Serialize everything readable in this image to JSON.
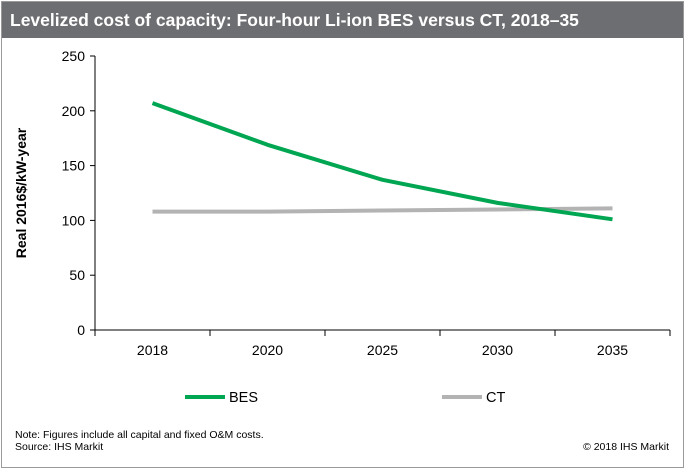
{
  "header": {
    "title": "Levelized cost of capacity: Four-hour Li-ion BES versus CT, 2018–35"
  },
  "chart_data": {
    "type": "line",
    "title": "Levelized cost of capacity: Four-hour Li-ion BES versus CT, 2018–35",
    "xlabel": "",
    "ylabel": "Real 2016$/kW-year",
    "categories": [
      "2018",
      "2020",
      "2025",
      "2030",
      "2035"
    ],
    "ylim": [
      0,
      250
    ],
    "yticks": [
      0,
      50,
      100,
      150,
      200,
      250
    ],
    "grid": false,
    "legend_position": "bottom",
    "series": [
      {
        "name": "BES",
        "color": "#00a651",
        "values": [
          207,
          169,
          137,
          116,
          101
        ]
      },
      {
        "name": "CT",
        "color": "#b3b3b3",
        "values": [
          108,
          108,
          109,
          110,
          111
        ]
      }
    ]
  },
  "footer": {
    "note": "Note: Figures include all capital and fixed O&M costs.",
    "source": "Source: IHS Markit",
    "copyright": "© 2018 IHS Markit"
  }
}
